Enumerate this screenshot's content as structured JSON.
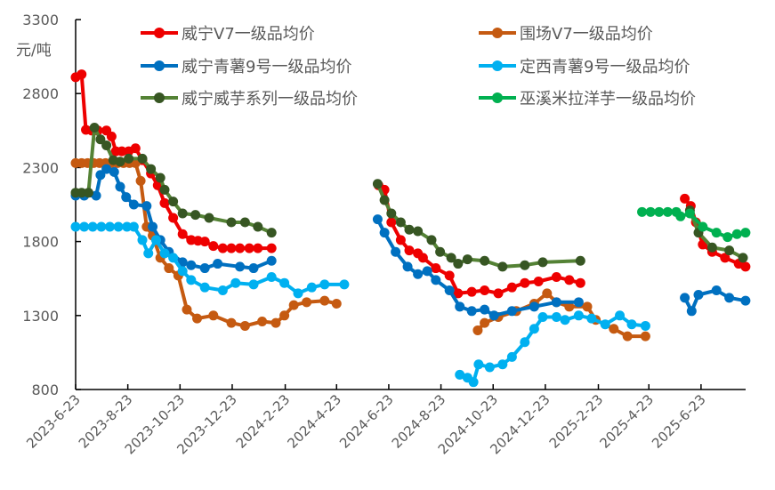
{
  "chart_data": {
    "type": "line",
    "ylabel": "元/吨",
    "ylim": [
      800,
      3300
    ],
    "yticks": [
      800,
      1300,
      1800,
      2300,
      2800,
      3300
    ],
    "xlim": [
      "2023-06-23",
      "2025-08-14"
    ],
    "xticks": [
      "2023-6-23",
      "2023-8-23",
      "2023-10-23",
      "2023-12-23",
      "2024-2-23",
      "2024-4-23",
      "2024-6-23",
      "2024-8-23",
      "2024-10-23",
      "2024-12-23",
      "2025-2-23",
      "2025-4-23",
      "2025-6-23"
    ],
    "grid": false,
    "legend_position": "top",
    "series": [
      {
        "name": "威宁V7一级品均价",
        "color": "#EE0000",
        "segments": [
          [
            [
              "2023-06-23",
              2910
            ],
            [
              "2023-06-30",
              2930
            ],
            [
              "2023-07-05",
              2555
            ],
            [
              "2023-07-12",
              2550
            ],
            [
              "2023-07-19",
              2550
            ],
            [
              "2023-07-29",
              2550
            ],
            [
              "2023-08-04",
              2510
            ],
            [
              "2023-08-09",
              2410
            ],
            [
              "2023-08-16",
              2410
            ],
            [
              "2023-08-24",
              2410
            ],
            [
              "2023-09-01",
              2430
            ],
            [
              "2023-09-09",
              2350
            ],
            [
              "2023-09-19",
              2260
            ],
            [
              "2023-09-27",
              2180
            ],
            [
              "2023-10-05",
              2060
            ],
            [
              "2023-10-15",
              1960
            ],
            [
              "2023-10-26",
              1850
            ],
            [
              "2023-11-05",
              1810
            ],
            [
              "2023-11-13",
              1805
            ],
            [
              "2023-11-21",
              1800
            ],
            [
              "2023-12-01",
              1770
            ],
            [
              "2023-12-12",
              1755
            ],
            [
              "2023-12-22",
              1755
            ],
            [
              "2024-01-01",
              1755
            ],
            [
              "2024-01-12",
              1755
            ],
            [
              "2024-01-22",
              1755
            ],
            [
              "2024-02-07",
              1755
            ]
          ],
          [
            [
              "2024-06-11",
              2180
            ],
            [
              "2024-06-18",
              2150
            ],
            [
              "2024-06-26",
              1930
            ],
            [
              "2024-07-07",
              1810
            ],
            [
              "2024-07-17",
              1740
            ],
            [
              "2024-07-27",
              1720
            ],
            [
              "2024-08-02",
              1690
            ],
            [
              "2024-08-17",
              1620
            ],
            [
              "2024-09-02",
              1570
            ],
            [
              "2024-09-12",
              1450
            ],
            [
              "2024-09-28",
              1460
            ],
            [
              "2024-10-13",
              1470
            ],
            [
              "2024-10-29",
              1450
            ],
            [
              "2024-11-14",
              1490
            ],
            [
              "2024-11-29",
              1520
            ],
            [
              "2024-12-15",
              1530
            ],
            [
              "2025-01-05",
              1560
            ],
            [
              "2025-01-20",
              1540
            ],
            [
              "2025-02-02",
              1520
            ]
          ],
          [
            [
              "2025-06-04",
              2090
            ],
            [
              "2025-06-11",
              2040
            ],
            [
              "2025-06-17",
              1930
            ],
            [
              "2025-06-25",
              1780
            ],
            [
              "2025-07-06",
              1730
            ],
            [
              "2025-07-21",
              1690
            ],
            [
              "2025-08-06",
              1650
            ],
            [
              "2025-08-14",
              1630
            ]
          ]
        ]
      },
      {
        "name": "围场V7一级品均价",
        "color": "#C55A11",
        "segments": [
          [
            [
              "2023-06-23",
              2330
            ],
            [
              "2023-06-30",
              2330
            ],
            [
              "2023-07-07",
              2330
            ],
            [
              "2023-07-14",
              2330
            ],
            [
              "2023-07-21",
              2330
            ],
            [
              "2023-07-28",
              2330
            ],
            [
              "2023-08-04",
              2330
            ],
            [
              "2023-08-11",
              2330
            ],
            [
              "2023-08-18",
              2330
            ],
            [
              "2023-08-25",
              2330
            ],
            [
              "2023-09-01",
              2330
            ],
            [
              "2023-09-07",
              2210
            ],
            [
              "2023-09-14",
              1900
            ],
            [
              "2023-09-21",
              1840
            ],
            [
              "2023-09-30",
              1690
            ],
            [
              "2023-10-10",
              1620
            ],
            [
              "2023-10-21",
              1570
            ],
            [
              "2023-10-31",
              1340
            ],
            [
              "2023-11-12",
              1280
            ],
            [
              "2023-12-01",
              1300
            ],
            [
              "2023-12-22",
              1250
            ],
            [
              "2024-01-07",
              1230
            ],
            [
              "2024-01-27",
              1260
            ],
            [
              "2024-02-12",
              1250
            ],
            [
              "2024-02-22",
              1300
            ],
            [
              "2024-03-04",
              1370
            ],
            [
              "2024-03-19",
              1390
            ],
            [
              "2024-04-09",
              1400
            ],
            [
              "2024-04-23",
              1380
            ]
          ],
          [
            [
              "2024-10-05",
              1200
            ],
            [
              "2024-10-13",
              1250
            ],
            [
              "2024-10-29",
              1290
            ],
            [
              "2024-11-19",
              1330
            ],
            [
              "2024-12-10",
              1380
            ],
            [
              "2024-12-25",
              1450
            ],
            [
              "2025-01-05",
              1390
            ],
            [
              "2025-01-20",
              1360
            ],
            [
              "2025-02-10",
              1360
            ],
            [
              "2025-02-20",
              1270
            ],
            [
              "2025-03-13",
              1210
            ],
            [
              "2025-03-29",
              1160
            ],
            [
              "2025-04-19",
              1160
            ]
          ]
        ]
      },
      {
        "name": "威宁青薯9号一级品均价",
        "color": "#0070C0",
        "segments": [
          [
            [
              "2023-06-23",
              2110
            ],
            [
              "2023-07-03",
              2110
            ],
            [
              "2023-07-17",
              2110
            ],
            [
              "2023-07-22",
              2250
            ],
            [
              "2023-07-29",
              2290
            ],
            [
              "2023-08-07",
              2270
            ],
            [
              "2023-08-14",
              2170
            ],
            [
              "2023-08-21",
              2100
            ],
            [
              "2023-08-30",
              2050
            ],
            [
              "2023-09-14",
              2040
            ],
            [
              "2023-09-21",
              1900
            ],
            [
              "2023-09-30",
              1810
            ],
            [
              "2023-10-10",
              1730
            ],
            [
              "2023-10-26",
              1660
            ],
            [
              "2023-11-05",
              1640
            ],
            [
              "2023-11-21",
              1620
            ],
            [
              "2023-12-06",
              1650
            ],
            [
              "2024-01-01",
              1630
            ],
            [
              "2024-01-17",
              1620
            ],
            [
              "2024-02-07",
              1670
            ]
          ],
          [
            [
              "2024-06-10",
              1950
            ],
            [
              "2024-06-18",
              1860
            ],
            [
              "2024-07-01",
              1730
            ],
            [
              "2024-07-15",
              1630
            ],
            [
              "2024-07-27",
              1580
            ],
            [
              "2024-08-07",
              1600
            ],
            [
              "2024-08-17",
              1540
            ],
            [
              "2024-09-02",
              1470
            ],
            [
              "2024-09-14",
              1360
            ],
            [
              "2024-09-28",
              1330
            ],
            [
              "2024-10-13",
              1340
            ],
            [
              "2024-10-24",
              1300
            ],
            [
              "2024-11-14",
              1330
            ],
            [
              "2024-12-10",
              1360
            ],
            [
              "2025-01-05",
              1390
            ],
            [
              "2025-01-31",
              1390
            ]
          ],
          [
            [
              "2025-06-04",
              1420
            ],
            [
              "2025-06-12",
              1330
            ],
            [
              "2025-06-20",
              1440
            ],
            [
              "2025-07-11",
              1470
            ],
            [
              "2025-07-26",
              1420
            ],
            [
              "2025-08-14",
              1400
            ]
          ]
        ]
      },
      {
        "name": "定西青薯9号一级品均价",
        "color": "#00B0F0",
        "segments": [
          [
            [
              "2023-06-23",
              1900
            ],
            [
              "2023-07-03",
              1900
            ],
            [
              "2023-07-13",
              1900
            ],
            [
              "2023-07-23",
              1900
            ],
            [
              "2023-08-02",
              1900
            ],
            [
              "2023-08-12",
              1900
            ],
            [
              "2023-08-22",
              1900
            ],
            [
              "2023-08-30",
              1900
            ],
            [
              "2023-09-09",
              1810
            ],
            [
              "2023-09-16",
              1720
            ],
            [
              "2023-09-25",
              1810
            ],
            [
              "2023-10-05",
              1720
            ],
            [
              "2023-10-15",
              1690
            ],
            [
              "2023-10-26",
              1600
            ],
            [
              "2023-11-05",
              1540
            ],
            [
              "2023-11-21",
              1490
            ],
            [
              "2023-12-12",
              1470
            ],
            [
              "2023-12-27",
              1520
            ],
            [
              "2024-01-17",
              1510
            ],
            [
              "2024-02-07",
              1560
            ],
            [
              "2024-02-22",
              1520
            ],
            [
              "2024-03-09",
              1450
            ],
            [
              "2024-03-25",
              1490
            ],
            [
              "2024-04-09",
              1510
            ],
            [
              "2024-05-02",
              1510
            ]
          ],
          [
            [
              "2024-09-14",
              900
            ],
            [
              "2024-09-23",
              880
            ],
            [
              "2024-09-30",
              850
            ],
            [
              "2024-10-06",
              970
            ],
            [
              "2024-10-19",
              950
            ],
            [
              "2024-11-03",
              970
            ],
            [
              "2024-11-14",
              1020
            ],
            [
              "2024-11-29",
              1120
            ],
            [
              "2024-12-10",
              1210
            ],
            [
              "2024-12-20",
              1290
            ],
            [
              "2025-01-05",
              1290
            ],
            [
              "2025-01-15",
              1270
            ],
            [
              "2025-01-31",
              1300
            ],
            [
              "2025-02-15",
              1280
            ],
            [
              "2025-03-03",
              1240
            ],
            [
              "2025-03-20",
              1300
            ],
            [
              "2025-04-03",
              1240
            ],
            [
              "2025-04-19",
              1230
            ]
          ]
        ]
      },
      {
        "name": "威宁威芋系列一级品均价",
        "color": "#375623",
        "line_color": "#548235",
        "segments": [
          [
            [
              "2023-06-23",
              2130
            ],
            [
              "2023-06-30",
              2130
            ],
            [
              "2023-07-08",
              2130
            ],
            [
              "2023-07-15",
              2570
            ],
            [
              "2023-07-22",
              2490
            ],
            [
              "2023-07-29",
              2450
            ],
            [
              "2023-08-06",
              2350
            ],
            [
              "2023-08-14",
              2340
            ],
            [
              "2023-08-24",
              2360
            ],
            [
              "2023-09-09",
              2360
            ],
            [
              "2023-09-19",
              2290
            ],
            [
              "2023-09-30",
              2230
            ],
            [
              "2023-10-05",
              2150
            ],
            [
              "2023-10-15",
              2070
            ],
            [
              "2023-10-26",
              1990
            ],
            [
              "2023-11-10",
              1980
            ],
            [
              "2023-11-26",
              1960
            ],
            [
              "2023-12-22",
              1930
            ],
            [
              "2024-01-07",
              1930
            ],
            [
              "2024-01-22",
              1900
            ],
            [
              "2024-02-07",
              1860
            ]
          ],
          [
            [
              "2024-06-10",
              2190
            ],
            [
              "2024-06-18",
              2080
            ],
            [
              "2024-06-26",
              1990
            ],
            [
              "2024-07-07",
              1930
            ],
            [
              "2024-07-17",
              1880
            ],
            [
              "2024-07-27",
              1870
            ],
            [
              "2024-08-12",
              1810
            ],
            [
              "2024-08-22",
              1730
            ],
            [
              "2024-09-04",
              1690
            ],
            [
              "2024-09-12",
              1650
            ],
            [
              "2024-09-23",
              1680
            ],
            [
              "2024-10-13",
              1670
            ],
            [
              "2024-11-03",
              1630
            ],
            [
              "2024-11-29",
              1640
            ],
            [
              "2024-12-20",
              1660
            ],
            [
              "2025-02-02",
              1670
            ]
          ],
          [
            [
              "2025-06-10",
              2010
            ],
            [
              "2025-06-20",
              1860
            ],
            [
              "2025-07-06",
              1760
            ],
            [
              "2025-07-26",
              1740
            ],
            [
              "2025-08-11",
              1690
            ]
          ]
        ]
      },
      {
        "name": "巫溪米拉洋芋一级品均价",
        "color": "#00B050",
        "segments": [
          [
            [
              "2025-04-15",
              2000
            ],
            [
              "2025-04-25",
              2000
            ],
            [
              "2025-05-05",
              2000
            ],
            [
              "2025-05-15",
              2000
            ],
            [
              "2025-05-25",
              2000
            ],
            [
              "2025-05-30",
              1970
            ],
            [
              "2025-06-10",
              1990
            ],
            [
              "2025-06-25",
              1900
            ],
            [
              "2025-07-11",
              1860
            ],
            [
              "2025-07-24",
              1830
            ],
            [
              "2025-08-04",
              1850
            ],
            [
              "2025-08-14",
              1860
            ]
          ]
        ]
      }
    ]
  }
}
